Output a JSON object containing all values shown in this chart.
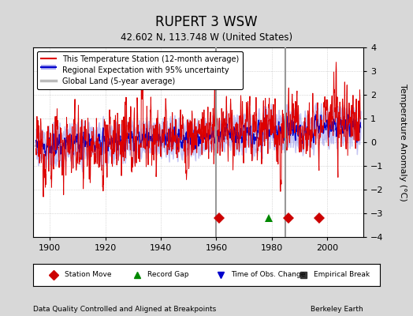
{
  "title": "RUPERT 3 WSW",
  "subtitle": "42.602 N, 113.748 W (United States)",
  "xlabel_bottom": "Data Quality Controlled and Aligned at Breakpoints",
  "xlabel_right": "Berkeley Earth",
  "ylabel": "Temperature Anomaly (°C)",
  "year_start": 1895,
  "year_end": 2011,
  "ylim": [
    -4,
    4
  ],
  "yticks": [
    -4,
    -3,
    -2,
    -1,
    0,
    1,
    2,
    3,
    4
  ],
  "xticks": [
    1900,
    1920,
    1940,
    1960,
    1980,
    2000
  ],
  "bg_color": "#d8d8d8",
  "plot_bg_color": "#ffffff",
  "station_line_color": "#dd0000",
  "regional_line_color": "#0000cc",
  "regional_fill_color": "#aaaaee",
  "global_line_color": "#bbbbbb",
  "vline_color": "#999999",
  "vlines": [
    1960,
    1985
  ],
  "marker_events": [
    {
      "type": "station_move",
      "year": 1961,
      "marker": "D",
      "color": "#cc0000",
      "label": "Station Move"
    },
    {
      "type": "station_move",
      "year": 1986,
      "marker": "D",
      "color": "#cc0000",
      "label": "Station Move"
    },
    {
      "type": "station_move",
      "year": 1997,
      "marker": "D",
      "color": "#cc0000",
      "label": "Station Move"
    },
    {
      "type": "record_gap",
      "year": 1979,
      "marker": "^",
      "color": "#008800",
      "label": "Record Gap"
    }
  ],
  "legend_line_items": [
    {
      "label": "This Temperature Station (12-month average)",
      "color": "#dd0000",
      "lw": 1.5
    },
    {
      "label": "Regional Expectation with 95% uncertainty",
      "color": "#0000cc",
      "lw": 1.5,
      "fill": "#aaaaee"
    },
    {
      "label": "Global Land (5-year average)",
      "color": "#bbbbbb",
      "lw": 2.5
    }
  ],
  "bottom_legend": [
    {
      "marker": "D",
      "color": "#cc0000",
      "label": "Station Move"
    },
    {
      "marker": "^",
      "color": "#008800",
      "label": "Record Gap"
    },
    {
      "marker": "v",
      "color": "#0000cc",
      "label": "Time of Obs. Change"
    },
    {
      "marker": "s",
      "color": "#333333",
      "label": "Empirical Break"
    }
  ]
}
